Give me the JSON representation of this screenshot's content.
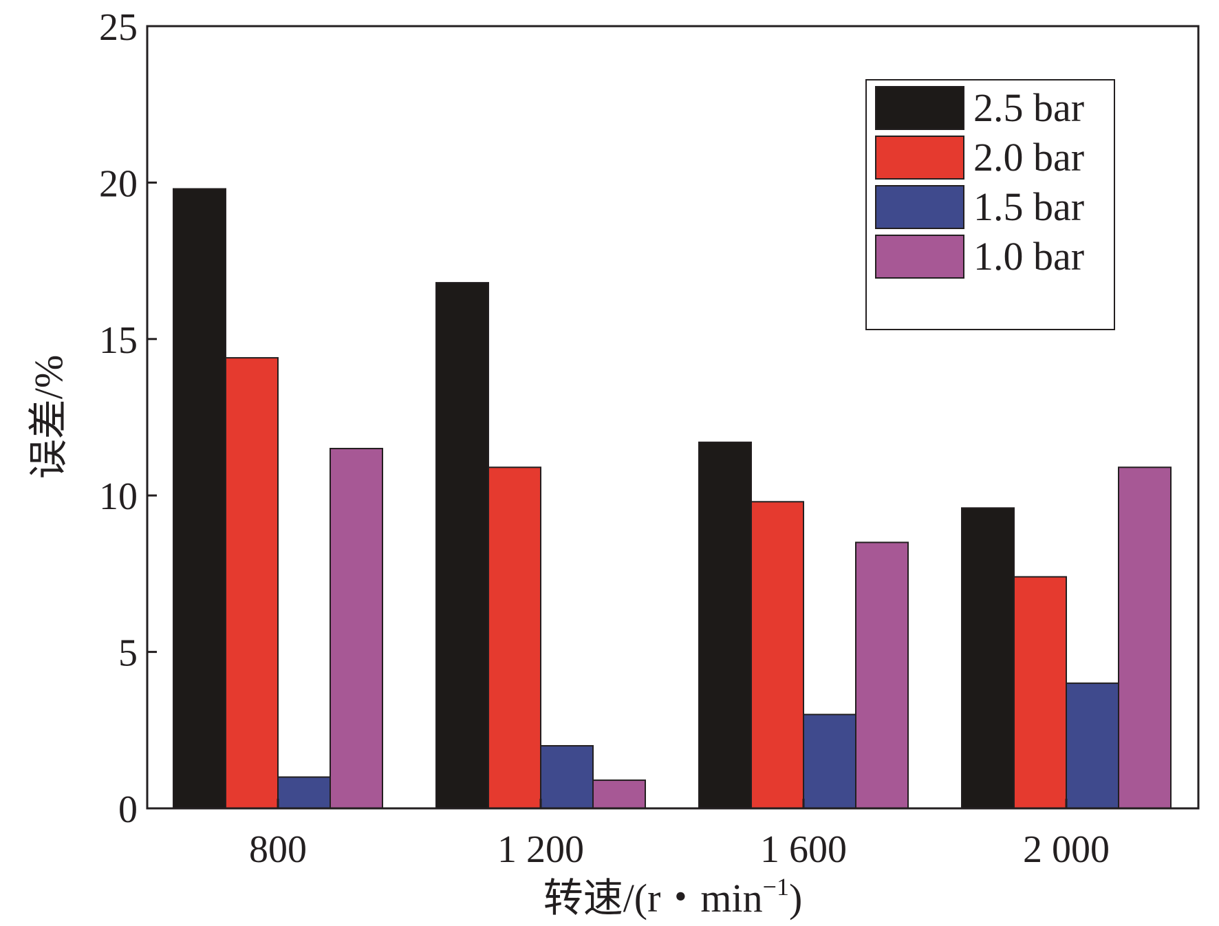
{
  "chart_data": {
    "type": "bar",
    "title": "",
    "xlabel": "转速/(r・min",
    "xlabel_sup": "−1",
    "xlabel_close": ")",
    "ylabel": "误差/%",
    "categories": [
      "800",
      "1 200",
      "1 600",
      "2 000"
    ],
    "ylim": [
      0,
      25
    ],
    "yticks": [
      0,
      5,
      10,
      15,
      20,
      25
    ],
    "grid": false,
    "legend_position": "top-right",
    "series": [
      {
        "name": "2.5 bar",
        "color": "#1d1a18",
        "values": [
          19.8,
          16.8,
          11.7,
          9.6
        ]
      },
      {
        "name": "2.0 bar",
        "color": "#e53a2f",
        "values": [
          14.4,
          10.9,
          9.8,
          7.4
        ]
      },
      {
        "name": "1.5 bar",
        "color": "#3f4a8d",
        "values": [
          1.0,
          2.0,
          3.0,
          4.0
        ]
      },
      {
        "name": "1.0 bar",
        "color": "#a75895",
        "values": [
          11.5,
          0.9,
          8.5,
          10.9
        ]
      }
    ]
  }
}
